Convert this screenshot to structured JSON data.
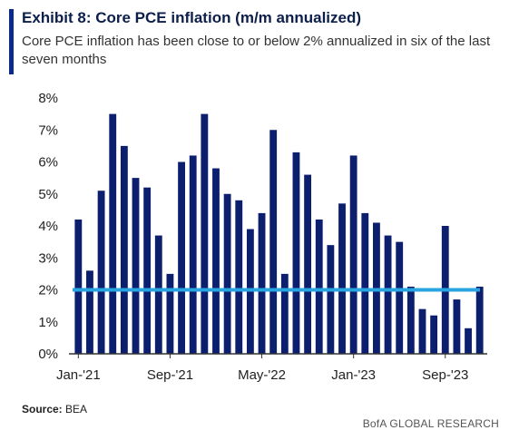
{
  "header": {
    "title": "Exhibit 8: Core PCE inflation (m/m annualized)",
    "subtitle": "Core PCE inflation has been close to or below 2% annualized in six of the last seven months"
  },
  "footer": {
    "source_label": "Source:",
    "source_value": "BEA",
    "brand": "BofA GLOBAL RESEARCH"
  },
  "colors": {
    "bar": "#0b1f6e",
    "reference_line": "#2aa4e0",
    "axis": "#333333"
  },
  "chart_data": {
    "type": "bar",
    "title": "Exhibit 8: Core PCE inflation (m/m annualized)",
    "xlabel": "",
    "ylabel": "",
    "ylim": [
      0,
      8
    ],
    "y_ticks": [
      "0%",
      "1%",
      "2%",
      "3%",
      "4%",
      "5%",
      "6%",
      "7%",
      "8%"
    ],
    "x_tick_labels": [
      {
        "index": 0,
        "label": "Jan-'21"
      },
      {
        "index": 8,
        "label": "Sep-'21"
      },
      {
        "index": 16,
        "label": "May-'22"
      },
      {
        "index": 24,
        "label": "Jan-'23"
      },
      {
        "index": 32,
        "label": "Sep-'23"
      }
    ],
    "categories": [
      "Jan-'21",
      "Feb-'21",
      "Mar-'21",
      "Apr-'21",
      "May-'21",
      "Jun-'21",
      "Jul-'21",
      "Aug-'21",
      "Sep-'21",
      "Oct-'21",
      "Nov-'21",
      "Dec-'21",
      "Jan-'22",
      "Feb-'22",
      "Mar-'22",
      "Apr-'22",
      "May-'22",
      "Jun-'22",
      "Jul-'22",
      "Aug-'22",
      "Sep-'22",
      "Oct-'22",
      "Nov-'22",
      "Dec-'22",
      "Jan-'23",
      "Feb-'23",
      "Mar-'23",
      "Apr-'23",
      "May-'23",
      "Jun-'23",
      "Jul-'23",
      "Aug-'23",
      "Sep-'23",
      "Oct-'23",
      "Nov-'23",
      "Dec-'23"
    ],
    "values": [
      4.2,
      2.6,
      5.1,
      7.5,
      6.5,
      5.5,
      5.2,
      3.7,
      2.5,
      6.0,
      6.2,
      7.5,
      5.8,
      5.0,
      4.8,
      3.9,
      4.4,
      7.0,
      2.5,
      6.3,
      5.6,
      4.2,
      3.4,
      4.7,
      6.2,
      4.4,
      4.1,
      3.7,
      3.5,
      2.1,
      1.4,
      1.2,
      4.0,
      1.7,
      0.8,
      2.1
    ],
    "reference_line": {
      "value": 2.0
    },
    "grid": false
  }
}
